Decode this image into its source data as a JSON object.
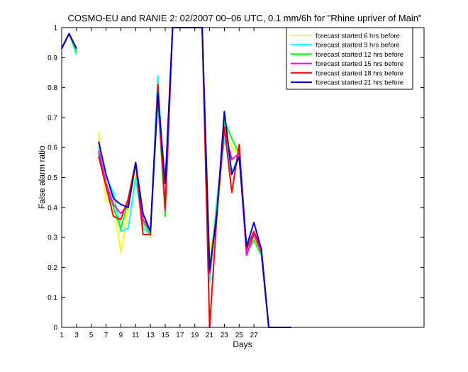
{
  "chart_data": {
    "type": "line",
    "title": "COSMO-EU and RANIE 2: 02/2007 00–06 UTC, 0.1 mm/6h for \"Rhine upriver of Main\"",
    "xlabel": "Days",
    "ylabel": "False alarm ratio",
    "xlim": [
      1,
      50
    ],
    "ylim": [
      0,
      1
    ],
    "xticks": [
      1,
      3,
      5,
      7,
      9,
      11,
      13,
      15,
      17,
      19,
      21,
      23,
      25,
      27
    ],
    "yticks": [
      0,
      0.1,
      0.2,
      0.3,
      0.4,
      0.5,
      0.6,
      0.7,
      0.8,
      0.9,
      1
    ],
    "ytick_labels": [
      "0",
      "0.1",
      "0.2",
      "0.3",
      "0.4",
      "0.5",
      "0.6",
      "0.7",
      "0.8",
      "0.9",
      "1"
    ],
    "legend_position": "top-right",
    "grid": false,
    "x": [
      1,
      2,
      3,
      4,
      5,
      6,
      7,
      8,
      9,
      10,
      11,
      12,
      13,
      14,
      15,
      16,
      17,
      18,
      19,
      20,
      21,
      22,
      23,
      24,
      25,
      26,
      27,
      28,
      29,
      30,
      31,
      32
    ],
    "series": [
      {
        "name": "forecast started 6 hrs before",
        "color": "#ffff00",
        "values": [
          0.93,
          0.98,
          0.92,
          null,
          null,
          0.65,
          0.42,
          0.42,
          0.25,
          0.4,
          0.52,
          0.37,
          0.3,
          0.8,
          0.4,
          1.0,
          1.0,
          1.0,
          1.0,
          1.0,
          0.26,
          0.35,
          0.67,
          0.6,
          0.58,
          0.26,
          0.3,
          0.25,
          0.0,
          0.0,
          0.0,
          0.0
        ]
      },
      {
        "name": "forecast started 9 hrs before",
        "color": "#00ffff",
        "values": [
          0.93,
          0.98,
          0.91,
          null,
          null,
          0.6,
          0.5,
          0.45,
          0.32,
          0.33,
          0.5,
          0.33,
          0.31,
          0.84,
          0.39,
          1.0,
          1.0,
          1.0,
          1.0,
          1.0,
          0.15,
          0.43,
          0.63,
          0.52,
          0.57,
          0.27,
          0.32,
          0.26,
          0.0,
          0.0,
          0.0,
          0.0
        ]
      },
      {
        "name": "forecast started 12 hrs before",
        "color": "#00ff00",
        "values": [
          0.93,
          0.98,
          0.92,
          null,
          null,
          0.58,
          0.47,
          0.4,
          0.33,
          0.42,
          0.55,
          0.35,
          0.31,
          0.76,
          0.37,
          1.0,
          1.0,
          1.0,
          1.0,
          1.0,
          0.2,
          0.4,
          0.69,
          0.63,
          0.58,
          0.25,
          0.29,
          0.24,
          0.0,
          0.0,
          0.0,
          0.0
        ]
      },
      {
        "name": "forecast started 15 hrs before",
        "color": "#ff00ff",
        "values": [
          0.93,
          0.98,
          0.93,
          null,
          null,
          0.59,
          0.48,
          0.41,
          0.38,
          0.41,
          0.55,
          0.36,
          0.32,
          0.78,
          0.39,
          1.0,
          1.0,
          1.0,
          1.0,
          1.0,
          0.18,
          0.39,
          0.66,
          0.56,
          0.58,
          0.24,
          0.31,
          0.25,
          0.0,
          0.0,
          0.0,
          0.0
        ]
      },
      {
        "name": "forecast started 18 hrs before",
        "color": "#ff0000",
        "values": [
          0.93,
          0.98,
          0.93,
          null,
          null,
          0.57,
          0.47,
          0.37,
          0.36,
          0.43,
          0.55,
          0.31,
          0.31,
          0.81,
          0.4,
          1.0,
          1.0,
          1.0,
          1.0,
          1.0,
          0.0,
          0.38,
          0.67,
          0.45,
          0.61,
          0.26,
          0.32,
          0.26,
          0.0,
          0.0,
          0.0,
          0.0
        ]
      },
      {
        "name": "forecast started 21 hrs before",
        "color": "#0000cc",
        "values": [
          0.93,
          0.98,
          0.93,
          null,
          null,
          0.62,
          0.51,
          0.43,
          0.41,
          0.4,
          0.55,
          0.38,
          0.32,
          0.78,
          0.48,
          1.0,
          1.0,
          1.0,
          1.0,
          1.0,
          0.19,
          0.38,
          0.72,
          0.51,
          0.57,
          0.27,
          0.35,
          0.26,
          0.0,
          0.0,
          0.0,
          0.0
        ]
      }
    ]
  }
}
